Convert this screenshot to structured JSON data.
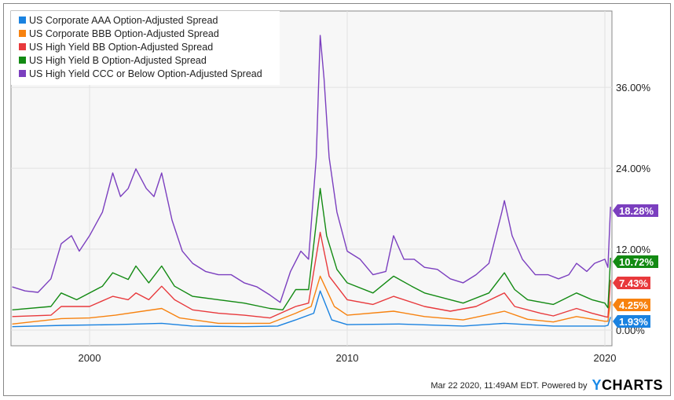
{
  "chart_data": {
    "type": "line",
    "title": "",
    "xlabel": "",
    "ylabel": "",
    "xlim": [
      1997.0,
      2020.3
    ],
    "ylim": [
      -1,
      44
    ],
    "yticks": [
      {
        "v": 0,
        "label": "0.00%"
      },
      {
        "v": 12,
        "label": "12.00%"
      },
      {
        "v": 24,
        "label": "24.00%"
      },
      {
        "v": 36,
        "label": "36.00%"
      }
    ],
    "xticks": [
      {
        "v": 2000,
        "label": "2000"
      },
      {
        "v": 2010,
        "label": "2010"
      },
      {
        "v": 2020,
        "label": "2020"
      }
    ],
    "legend_position": "top-left",
    "series": [
      {
        "name": "US Corporate AAA Option-Adjusted Spread",
        "color": "#1a82e0",
        "last_label": "1.93%",
        "points": [
          [
            1997,
            0.5
          ],
          [
            1999,
            0.7
          ],
          [
            2001,
            0.8
          ],
          [
            2002.8,
            1.0
          ],
          [
            2004,
            0.6
          ],
          [
            2006,
            0.5
          ],
          [
            2007.3,
            0.6
          ],
          [
            2008,
            1.5
          ],
          [
            2008.7,
            2.5
          ],
          [
            2008.95,
            5.8
          ],
          [
            2009.4,
            1.5
          ],
          [
            2010,
            0.8
          ],
          [
            2012,
            0.9
          ],
          [
            2014.5,
            0.6
          ],
          [
            2016.1,
            1.0
          ],
          [
            2018,
            0.6
          ],
          [
            2020,
            0.6
          ],
          [
            2020.12,
            0.7
          ],
          [
            2020.22,
            1.93
          ]
        ]
      },
      {
        "name": "US Corporate BBB Option-Adjusted Spread",
        "color": "#f7820f",
        "last_label": "4.25%",
        "points": [
          [
            1997,
            0.9
          ],
          [
            1998.9,
            1.7
          ],
          [
            2000,
            1.8
          ],
          [
            2001,
            2.2
          ],
          [
            2002.8,
            3.2
          ],
          [
            2003.5,
            1.8
          ],
          [
            2005,
            1.0
          ],
          [
            2007,
            1.0
          ],
          [
            2008,
            2.5
          ],
          [
            2008.6,
            3.5
          ],
          [
            2008.95,
            8.0
          ],
          [
            2009.5,
            3.5
          ],
          [
            2010,
            2.2
          ],
          [
            2011.8,
            2.8
          ],
          [
            2013,
            2.0
          ],
          [
            2014.5,
            1.5
          ],
          [
            2016.1,
            2.8
          ],
          [
            2017,
            1.6
          ],
          [
            2018,
            1.2
          ],
          [
            2018.9,
            2.0
          ],
          [
            2020,
            1.3
          ],
          [
            2020.12,
            1.3
          ],
          [
            2020.22,
            4.25
          ]
        ]
      },
      {
        "name": "US High Yield BB Option-Adjusted Spread",
        "color": "#e8393c",
        "last_label": "7.43%",
        "points": [
          [
            1997,
            2.0
          ],
          [
            1998.5,
            2.2
          ],
          [
            1998.9,
            3.5
          ],
          [
            2000,
            3.5
          ],
          [
            2000.9,
            5
          ],
          [
            2001.5,
            4.5
          ],
          [
            2001.8,
            5.5
          ],
          [
            2002.3,
            4.5
          ],
          [
            2002.8,
            6.5
          ],
          [
            2003.3,
            4.5
          ],
          [
            2004,
            3
          ],
          [
            2005,
            2.5
          ],
          [
            2006,
            2.2
          ],
          [
            2007,
            1.8
          ],
          [
            2008,
            3.5
          ],
          [
            2008.5,
            4
          ],
          [
            2008.95,
            14.5
          ],
          [
            2009.3,
            8
          ],
          [
            2010,
            4.5
          ],
          [
            2011,
            3.8
          ],
          [
            2011.8,
            5
          ],
          [
            2013,
            3.5
          ],
          [
            2014,
            2.8
          ],
          [
            2015,
            3.5
          ],
          [
            2016.1,
            5.5
          ],
          [
            2016.5,
            3.5
          ],
          [
            2017.5,
            2.5
          ],
          [
            2018,
            2.1
          ],
          [
            2018.9,
            3.2
          ],
          [
            2019.5,
            2.5
          ],
          [
            2020,
            2.0
          ],
          [
            2020.12,
            1.9
          ],
          [
            2020.22,
            7.43
          ]
        ]
      },
      {
        "name": "US High Yield B Option-Adjusted Spread",
        "color": "#138a13",
        "last_label": "10.72%",
        "points": [
          [
            1997,
            3.0
          ],
          [
            1998.5,
            3.5
          ],
          [
            1998.9,
            5.5
          ],
          [
            1999.5,
            4.5
          ],
          [
            2000.5,
            6.5
          ],
          [
            2000.9,
            8.5
          ],
          [
            2001.5,
            7.5
          ],
          [
            2001.8,
            9.5
          ],
          [
            2002.3,
            7
          ],
          [
            2002.8,
            9.5
          ],
          [
            2003.3,
            6.5
          ],
          [
            2004,
            5
          ],
          [
            2005,
            4.5
          ],
          [
            2006,
            4
          ],
          [
            2007,
            3.2
          ],
          [
            2007.5,
            3
          ],
          [
            2008,
            6
          ],
          [
            2008.5,
            6
          ],
          [
            2008.95,
            21
          ],
          [
            2009.2,
            14
          ],
          [
            2009.6,
            9
          ],
          [
            2010,
            7
          ],
          [
            2011,
            5.5
          ],
          [
            2011.8,
            8
          ],
          [
            2012.5,
            6.5
          ],
          [
            2013,
            5.5
          ],
          [
            2014,
            4.5
          ],
          [
            2014.5,
            4
          ],
          [
            2015.5,
            5.5
          ],
          [
            2016.1,
            8.5
          ],
          [
            2016.5,
            6
          ],
          [
            2017,
            4.5
          ],
          [
            2018,
            3.8
          ],
          [
            2018.9,
            5.5
          ],
          [
            2019.5,
            4.5
          ],
          [
            2020,
            4
          ],
          [
            2020.12,
            3.3
          ],
          [
            2020.22,
            10.72
          ]
        ]
      },
      {
        "name": "US High Yield CCC or Below Option-Adjusted Spread",
        "color": "#7b3fbf",
        "last_label": "18.28%",
        "points": [
          [
            1997,
            6.4
          ],
          [
            1997.5,
            5.8
          ],
          [
            1998,
            5.6
          ],
          [
            1998.5,
            7.6
          ],
          [
            1998.9,
            12.8
          ],
          [
            1999.3,
            14
          ],
          [
            1999.6,
            11.7
          ],
          [
            2000,
            14
          ],
          [
            2000.5,
            17.5
          ],
          [
            2000.9,
            23.3
          ],
          [
            2001.2,
            19.8
          ],
          [
            2001.5,
            21
          ],
          [
            2001.8,
            23.9
          ],
          [
            2002.2,
            21
          ],
          [
            2002.5,
            19.8
          ],
          [
            2002.8,
            23.3
          ],
          [
            2003.2,
            16.3
          ],
          [
            2003.6,
            11.7
          ],
          [
            2004,
            9.9
          ],
          [
            2004.5,
            8.7
          ],
          [
            2005,
            8.2
          ],
          [
            2005.5,
            8.2
          ],
          [
            2006,
            7
          ],
          [
            2006.5,
            6.4
          ],
          [
            2007,
            5.2
          ],
          [
            2007.4,
            4.1
          ],
          [
            2007.8,
            8.7
          ],
          [
            2008.2,
            11.7
          ],
          [
            2008.5,
            10.5
          ],
          [
            2008.8,
            25.6
          ],
          [
            2008.95,
            43.7
          ],
          [
            2009.1,
            37.3
          ],
          [
            2009.3,
            25.6
          ],
          [
            2009.6,
            17.5
          ],
          [
            2010,
            11.7
          ],
          [
            2010.5,
            10.5
          ],
          [
            2011,
            8.2
          ],
          [
            2011.5,
            8.7
          ],
          [
            2011.8,
            14
          ],
          [
            2012.2,
            10.5
          ],
          [
            2012.6,
            10.5
          ],
          [
            2013,
            9.3
          ],
          [
            2013.5,
            9.0
          ],
          [
            2014,
            7.6
          ],
          [
            2014.5,
            7
          ],
          [
            2015,
            8.2
          ],
          [
            2015.5,
            9.9
          ],
          [
            2016,
            17.5
          ],
          [
            2016.1,
            19.2
          ],
          [
            2016.4,
            14
          ],
          [
            2016.8,
            10.5
          ],
          [
            2017.3,
            8.2
          ],
          [
            2017.8,
            8.2
          ],
          [
            2018.2,
            7.6
          ],
          [
            2018.6,
            8.2
          ],
          [
            2018.9,
            9.9
          ],
          [
            2019.3,
            8.7
          ],
          [
            2019.6,
            9.9
          ],
          [
            2020,
            10.5
          ],
          [
            2020.12,
            9.3
          ],
          [
            2020.22,
            18.28
          ]
        ]
      }
    ]
  },
  "footer": {
    "timestamp": "Mar 22 2020, 11:49AM EDT.",
    "powered_by": "Powered by",
    "logo": "YCHARTS"
  }
}
